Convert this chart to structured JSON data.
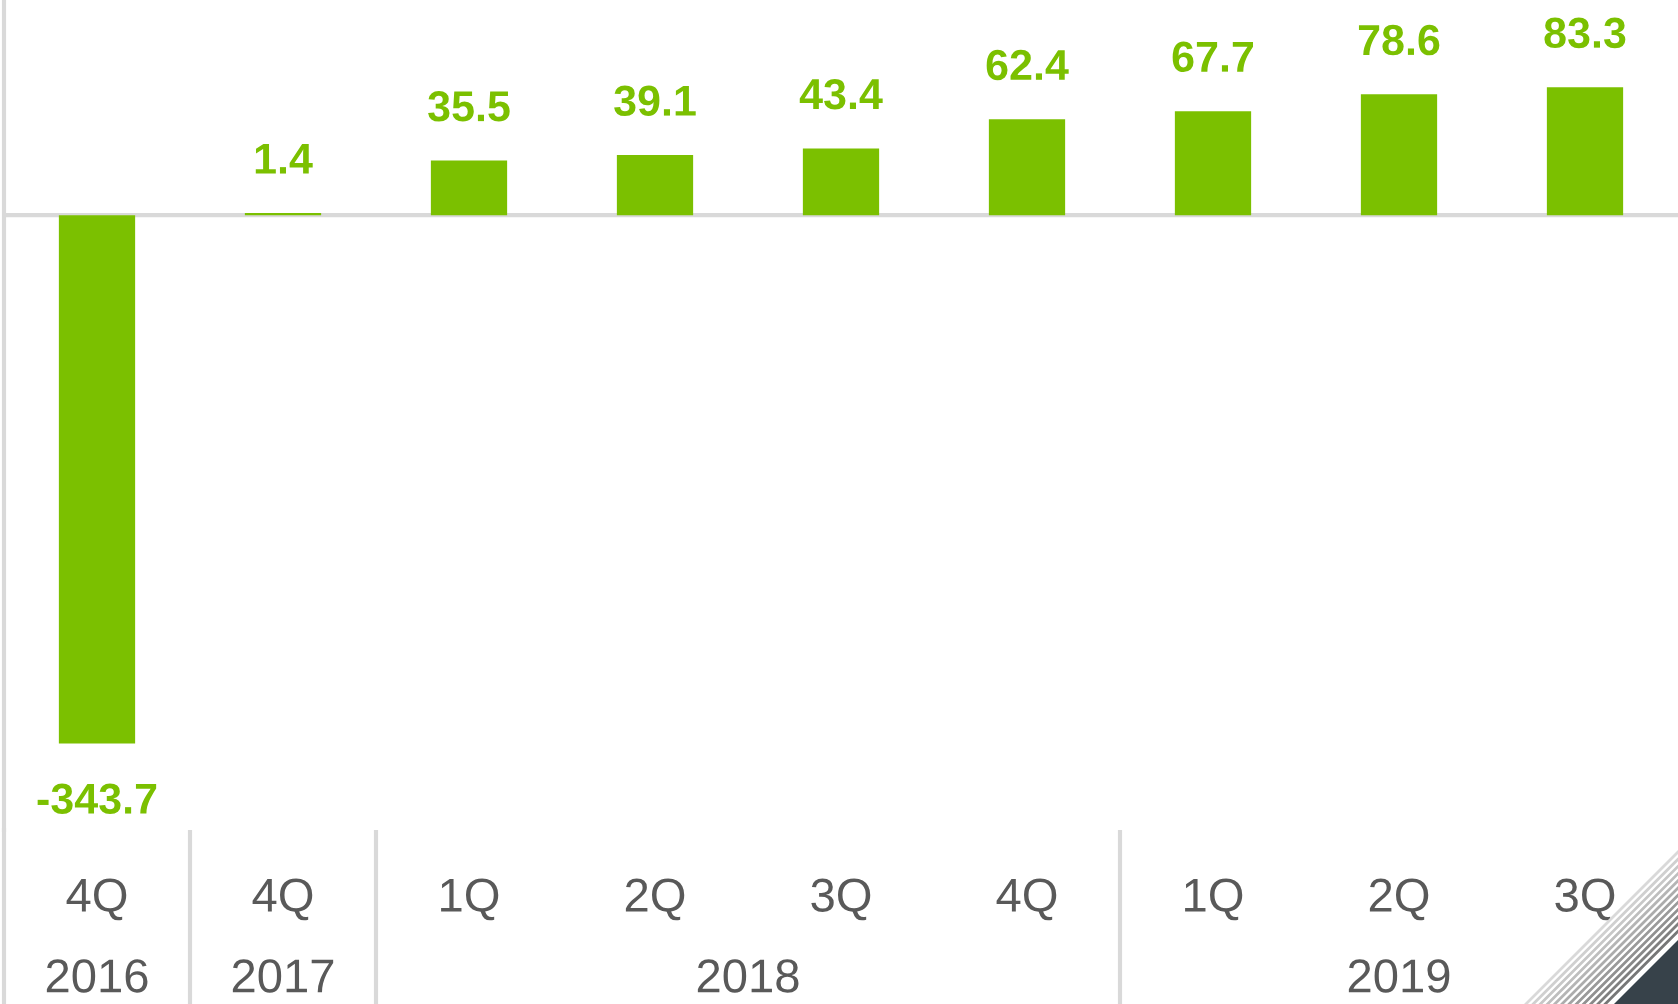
{
  "chart_data": {
    "type": "bar",
    "categories": [
      "4Q",
      "4Q",
      "1Q",
      "2Q",
      "3Q",
      "4Q",
      "1Q",
      "2Q",
      "3Q"
    ],
    "values": [
      -343.7,
      1.4,
      35.5,
      39.1,
      43.4,
      62.4,
      67.7,
      78.6,
      83.3
    ],
    "color": "#7bc000",
    "data_labels": true,
    "ylim": [
      -400,
      140
    ],
    "tick_labels": "x",
    "annotations": [
      "2016",
      "2017",
      "2018",
      "2019"
    ]
  }
}
